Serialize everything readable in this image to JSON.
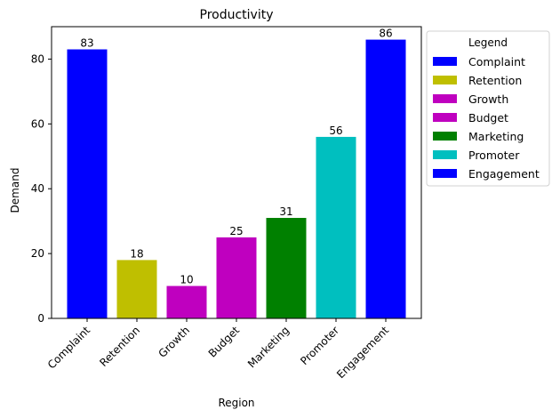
{
  "chart_data": {
    "type": "bar",
    "title": "Productivity",
    "xlabel": "Region",
    "ylabel": "Demand",
    "categories": [
      "Complaint",
      "Retention",
      "Growth",
      "Budget",
      "Marketing",
      "Promoter",
      "Engagement"
    ],
    "values": [
      83,
      18,
      10,
      25,
      31,
      56,
      86
    ],
    "colors": [
      "#0000ff",
      "#bfbf00",
      "#bf00bf",
      "#bf00bf",
      "#008000",
      "#00bfbf",
      "#0000ff"
    ],
    "ylim": [
      0,
      90
    ],
    "yticks": [
      0,
      20,
      40,
      60,
      80
    ],
    "legend": {
      "title": "Legend",
      "placement": "outside-right",
      "entries": [
        "Complaint",
        "Retention",
        "Growth",
        "Budget",
        "Marketing",
        "Promoter",
        "Engagement"
      ]
    },
    "grid": false
  }
}
